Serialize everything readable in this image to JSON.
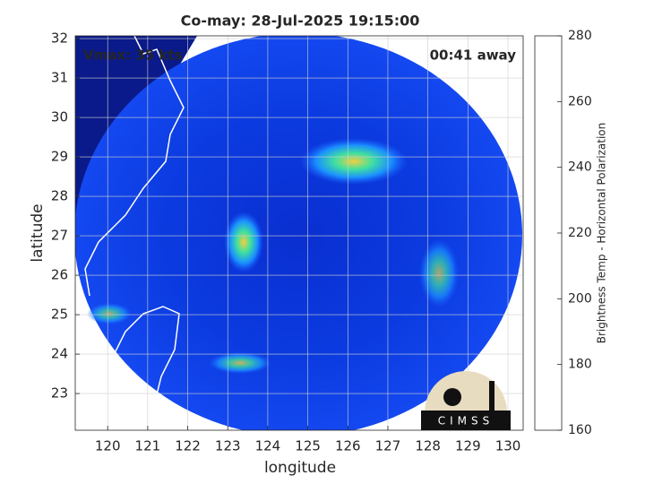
{
  "chart_data": {
    "type": "image",
    "title": "Co-may: 28-Jul-2025 19:15:00",
    "annotation_left": "Vmax: 35 kts",
    "annotation_right": "00:41 away",
    "xlabel": "longitude",
    "ylabel": "latitude",
    "xlim": [
      119.19,
      130.38
    ],
    "ylim": [
      22.07,
      32.07
    ],
    "xticks": [
      120,
      121,
      122,
      123,
      124,
      125,
      126,
      127,
      128,
      129,
      130
    ],
    "yticks": [
      23,
      24,
      25,
      26,
      27,
      28,
      29,
      30,
      31,
      32
    ],
    "grid": true,
    "colorbar": {
      "label": "Brightness Temp - Horizontal Polarization",
      "lim": [
        160,
        280
      ],
      "ticks": [
        160,
        180,
        200,
        220,
        240,
        260,
        280
      ],
      "colormap": [
        "#7f0000",
        "#ff0000",
        "#ffff00",
        "#3fffbf",
        "#00bfff",
        "#0000ff",
        "#00007f"
      ]
    },
    "logo_text": "CIMSS"
  }
}
